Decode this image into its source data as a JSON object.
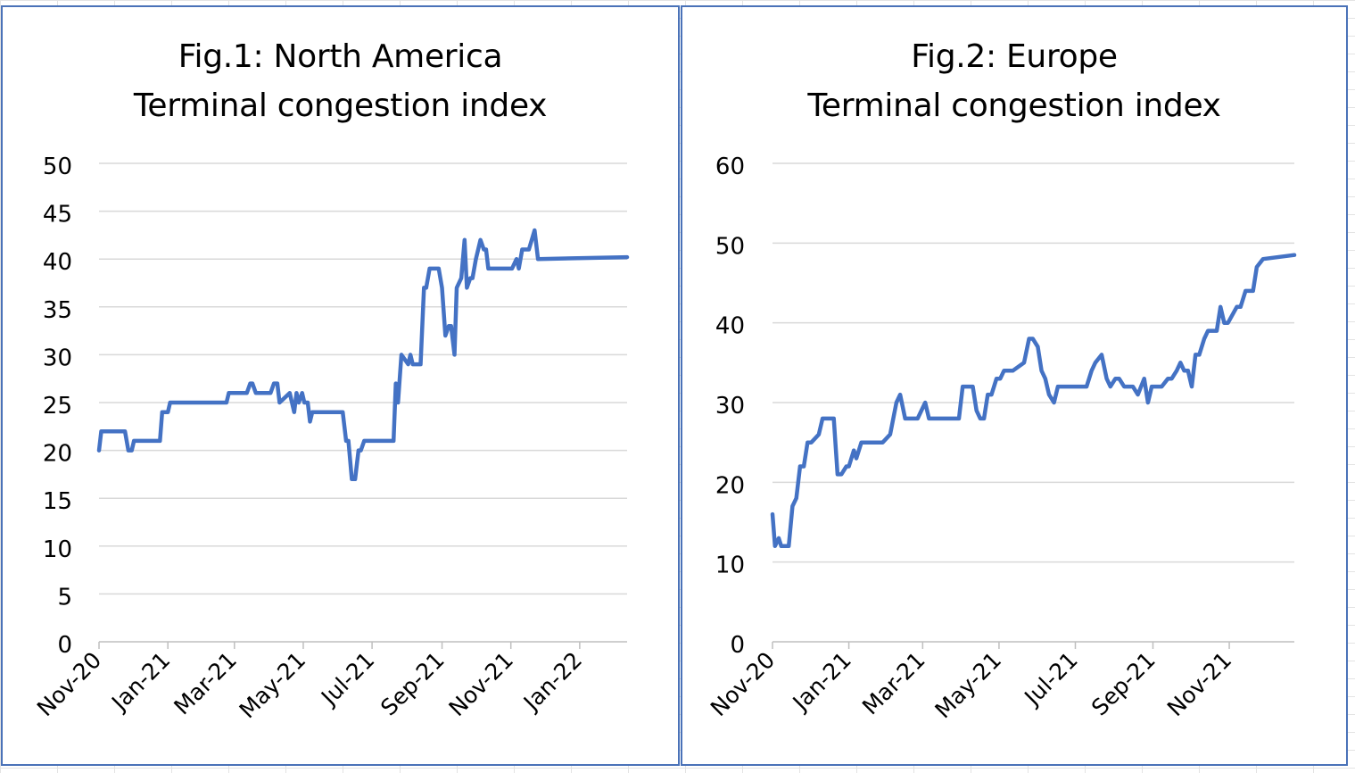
{
  "chart_data": [
    {
      "type": "line",
      "title": "Fig.1: North America",
      "subtitle": "Terminal congestion index",
      "xlabel": "",
      "ylabel": "",
      "ylim": [
        0,
        50
      ],
      "yticks": [
        0,
        5,
        10,
        15,
        20,
        25,
        30,
        35,
        40,
        45,
        50
      ],
      "x_range": [
        "2020-11-01",
        "2022-02-12"
      ],
      "xtick_labels": [
        "Nov-20",
        "Jan-21",
        "Mar-21",
        "May-21",
        "Jul-21",
        "Sep-21",
        "Nov-21",
        "Jan-22"
      ],
      "xtick_dates": [
        "2020-11-01",
        "2021-01-01",
        "2021-03-01",
        "2021-05-01",
        "2021-07-01",
        "2021-09-01",
        "2021-11-01",
        "2022-01-01"
      ],
      "grid": "horizontal",
      "line_color": "#4472c4",
      "series": [
        {
          "name": "",
          "points": [
            [
              "2020-11-01",
              20
            ],
            [
              "2020-11-03",
              22
            ],
            [
              "2020-11-24",
              22
            ],
            [
              "2020-11-27",
              20
            ],
            [
              "2020-11-30",
              20
            ],
            [
              "2020-12-02",
              21
            ],
            [
              "2020-12-25",
              21
            ],
            [
              "2020-12-27",
              24
            ],
            [
              "2021-01-01",
              24
            ],
            [
              "2021-01-03",
              25
            ],
            [
              "2021-02-22",
              25
            ],
            [
              "2021-02-24",
              26
            ],
            [
              "2021-03-12",
              26
            ],
            [
              "2021-03-15",
              27
            ],
            [
              "2021-03-17",
              27
            ],
            [
              "2021-03-20",
              26
            ],
            [
              "2021-04-02",
              26
            ],
            [
              "2021-04-05",
              27
            ],
            [
              "2021-04-08",
              27
            ],
            [
              "2021-04-10",
              25
            ],
            [
              "2021-04-19",
              26
            ],
            [
              "2021-04-23",
              24
            ],
            [
              "2021-04-25",
              26
            ],
            [
              "2021-04-27",
              25
            ],
            [
              "2021-04-30",
              26
            ],
            [
              "2021-05-02",
              25
            ],
            [
              "2021-05-05",
              25
            ],
            [
              "2021-05-07",
              23
            ],
            [
              "2021-05-09",
              24
            ],
            [
              "2021-06-05",
              24
            ],
            [
              "2021-06-08",
              21
            ],
            [
              "2021-06-10",
              21
            ],
            [
              "2021-06-13",
              17
            ],
            [
              "2021-06-16",
              17
            ],
            [
              "2021-06-19",
              20
            ],
            [
              "2021-06-21",
              20
            ],
            [
              "2021-06-24",
              21
            ],
            [
              "2021-07-20",
              21
            ],
            [
              "2021-07-22",
              27
            ],
            [
              "2021-07-24",
              25
            ],
            [
              "2021-07-27",
              30
            ],
            [
              "2021-08-02",
              29
            ],
            [
              "2021-08-04",
              30
            ],
            [
              "2021-08-06",
              29
            ],
            [
              "2021-08-13",
              29
            ],
            [
              "2021-08-16",
              37
            ],
            [
              "2021-08-18",
              37
            ],
            [
              "2021-08-21",
              39
            ],
            [
              "2021-08-29",
              39
            ],
            [
              "2021-09-01",
              37
            ],
            [
              "2021-09-04",
              32
            ],
            [
              "2021-09-07",
              33
            ],
            [
              "2021-09-09",
              33
            ],
            [
              "2021-09-12",
              30
            ],
            [
              "2021-09-14",
              37
            ],
            [
              "2021-09-18",
              38
            ],
            [
              "2021-09-21",
              42
            ],
            [
              "2021-09-23",
              37
            ],
            [
              "2021-09-26",
              38
            ],
            [
              "2021-09-28",
              38
            ],
            [
              "2021-10-01",
              40
            ],
            [
              "2021-10-05",
              42
            ],
            [
              "2021-10-08",
              41
            ],
            [
              "2021-10-10",
              41
            ],
            [
              "2021-10-12",
              39
            ],
            [
              "2021-11-02",
              39
            ],
            [
              "2021-11-06",
              40
            ],
            [
              "2021-11-08",
              39
            ],
            [
              "2021-11-11",
              41
            ],
            [
              "2021-11-17",
              41
            ],
            [
              "2021-11-22",
              43
            ],
            [
              "2021-11-25",
              40
            ],
            [
              "2022-02-12",
              40.2
            ]
          ]
        }
      ]
    },
    {
      "type": "line",
      "title": "Fig.2: Europe",
      "subtitle": "Terminal congestion index",
      "xlabel": "",
      "ylabel": "",
      "ylim": [
        0,
        60
      ],
      "yticks": [
        0,
        10,
        20,
        30,
        40,
        50,
        60
      ],
      "x_range": [
        "2020-11-01",
        "2021-12-23"
      ],
      "xtick_labels": [
        "Nov-20",
        "Jan-21",
        "Mar-21",
        "May-21",
        "Jul-21",
        "Sep-21",
        "Nov-21"
      ],
      "xtick_dates": [
        "2020-11-01",
        "2021-01-01",
        "2021-03-01",
        "2021-05-01",
        "2021-07-01",
        "2021-09-01",
        "2021-11-01"
      ],
      "grid": "horizontal",
      "line_color": "#4472c4",
      "series": [
        {
          "name": "",
          "points": [
            [
              "2020-11-01",
              16
            ],
            [
              "2020-11-03",
              12
            ],
            [
              "2020-11-06",
              13
            ],
            [
              "2020-11-08",
              12
            ],
            [
              "2020-11-14",
              12
            ],
            [
              "2020-11-17",
              17
            ],
            [
              "2020-11-20",
              18
            ],
            [
              "2020-11-23",
              22
            ],
            [
              "2020-11-26",
              22
            ],
            [
              "2020-11-29",
              25
            ],
            [
              "2020-12-02",
              25
            ],
            [
              "2020-12-08",
              26
            ],
            [
              "2020-12-11",
              28
            ],
            [
              "2020-12-20",
              28
            ],
            [
              "2020-12-23",
              21
            ],
            [
              "2020-12-26",
              21
            ],
            [
              "2020-12-30",
              22
            ],
            [
              "2021-01-01",
              22
            ],
            [
              "2021-01-05",
              24
            ],
            [
              "2021-01-07",
              23
            ],
            [
              "2021-01-11",
              25
            ],
            [
              "2021-01-28",
              25
            ],
            [
              "2021-02-03",
              26
            ],
            [
              "2021-02-08",
              30
            ],
            [
              "2021-02-11",
              31
            ],
            [
              "2021-02-15",
              28
            ],
            [
              "2021-02-25",
              28
            ],
            [
              "2021-03-03",
              30
            ],
            [
              "2021-03-06",
              28
            ],
            [
              "2021-03-30",
              28
            ],
            [
              "2021-04-02",
              32
            ],
            [
              "2021-04-10",
              32
            ],
            [
              "2021-04-13",
              29
            ],
            [
              "2021-04-16",
              28
            ],
            [
              "2021-04-19",
              28
            ],
            [
              "2021-04-22",
              31
            ],
            [
              "2021-04-25",
              31
            ],
            [
              "2021-04-29",
              33
            ],
            [
              "2021-05-02",
              33
            ],
            [
              "2021-05-05",
              34
            ],
            [
              "2021-05-12",
              34
            ],
            [
              "2021-05-21",
              35
            ],
            [
              "2021-05-25",
              38
            ],
            [
              "2021-05-28",
              38
            ],
            [
              "2021-06-01",
              37
            ],
            [
              "2021-06-04",
              34
            ],
            [
              "2021-06-07",
              33
            ],
            [
              "2021-06-10",
              31
            ],
            [
              "2021-06-14",
              30
            ],
            [
              "2021-06-17",
              32
            ],
            [
              "2021-07-10",
              32
            ],
            [
              "2021-07-14",
              34
            ],
            [
              "2021-07-17",
              35
            ],
            [
              "2021-07-22",
              36
            ],
            [
              "2021-07-26",
              33
            ],
            [
              "2021-07-29",
              32
            ],
            [
              "2021-08-02",
              33
            ],
            [
              "2021-08-05",
              33
            ],
            [
              "2021-08-09",
              32
            ],
            [
              "2021-08-16",
              32
            ],
            [
              "2021-08-20",
              31
            ],
            [
              "2021-08-25",
              33
            ],
            [
              "2021-08-28",
              30
            ],
            [
              "2021-08-31",
              32
            ],
            [
              "2021-09-08",
              32
            ],
            [
              "2021-09-13",
              33
            ],
            [
              "2021-09-16",
              33
            ],
            [
              "2021-09-20",
              34
            ],
            [
              "2021-09-23",
              35
            ],
            [
              "2021-09-26",
              34
            ],
            [
              "2021-09-29",
              34
            ],
            [
              "2021-10-02",
              32
            ],
            [
              "2021-10-05",
              36
            ],
            [
              "2021-10-08",
              36
            ],
            [
              "2021-10-12",
              38
            ],
            [
              "2021-10-15",
              39
            ],
            [
              "2021-10-22",
              39
            ],
            [
              "2021-10-25",
              42
            ],
            [
              "2021-10-28",
              40
            ],
            [
              "2021-10-31",
              40
            ],
            [
              "2021-11-07",
              42
            ],
            [
              "2021-11-10",
              42
            ],
            [
              "2021-11-14",
              44
            ],
            [
              "2021-11-20",
              44
            ],
            [
              "2021-11-23",
              47
            ],
            [
              "2021-11-28",
              48
            ],
            [
              "2021-12-23",
              48.5
            ]
          ]
        }
      ]
    }
  ]
}
